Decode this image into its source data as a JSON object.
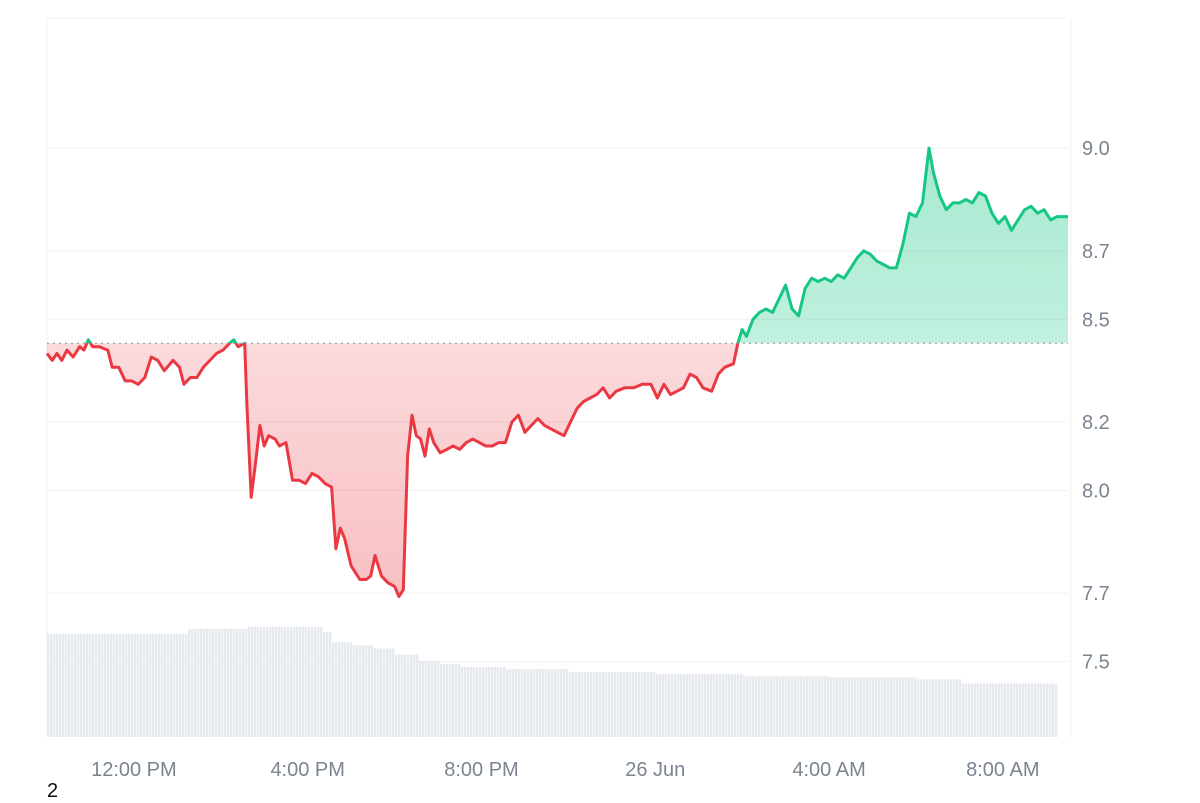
{
  "footer_text": "2",
  "colors": {
    "up": "#16c784",
    "down": "#ea3943",
    "grid": "#eef0f3",
    "volume": "#e6e9ee",
    "baseline": "#9ba3ae",
    "tick_text": "#7b8491"
  },
  "chart_data": {
    "type": "area",
    "baseline": 8.43,
    "ylim": [
      7.28,
      9.38
    ],
    "y_ticks": [
      "7.5",
      "7.7",
      "8.0",
      "8.2",
      "8.5",
      "8.7",
      "9.0"
    ],
    "x_ticks": [
      {
        "label": "12:00 PM",
        "t": 2.5
      },
      {
        "label": "4:00 PM",
        "t": 6.5
      },
      {
        "label": "8:00 PM",
        "t": 10.5
      },
      {
        "label": "26 Jun",
        "t": 14.5
      },
      {
        "label": "4:00 AM",
        "t": 18.5
      },
      {
        "label": "8:00 AM",
        "t": 22.5
      }
    ],
    "xlim": [
      0.5,
      24.0
    ],
    "price_series": [
      [
        0.5,
        8.4
      ],
      [
        0.62,
        8.38
      ],
      [
        0.73,
        8.4
      ],
      [
        0.84,
        8.38
      ],
      [
        0.96,
        8.41
      ],
      [
        1.1,
        8.39
      ],
      [
        1.25,
        8.42
      ],
      [
        1.35,
        8.41
      ],
      [
        1.45,
        8.44
      ],
      [
        1.55,
        8.42
      ],
      [
        1.7,
        8.42
      ],
      [
        1.9,
        8.41
      ],
      [
        2.0,
        8.36
      ],
      [
        2.15,
        8.36
      ],
      [
        2.3,
        8.32
      ],
      [
        2.45,
        8.32
      ],
      [
        2.6,
        8.31
      ],
      [
        2.75,
        8.33
      ],
      [
        2.9,
        8.39
      ],
      [
        3.05,
        8.38
      ],
      [
        3.2,
        8.35
      ],
      [
        3.4,
        8.38
      ],
      [
        3.55,
        8.36
      ],
      [
        3.65,
        8.31
      ],
      [
        3.8,
        8.33
      ],
      [
        3.95,
        8.33
      ],
      [
        4.1,
        8.36
      ],
      [
        4.25,
        8.38
      ],
      [
        4.4,
        8.4
      ],
      [
        4.55,
        8.41
      ],
      [
        4.7,
        8.43
      ],
      [
        4.8,
        8.44
      ],
      [
        4.9,
        8.42
      ],
      [
        5.05,
        8.43
      ],
      [
        5.1,
        8.25
      ],
      [
        5.2,
        7.98
      ],
      [
        5.3,
        8.08
      ],
      [
        5.4,
        8.19
      ],
      [
        5.5,
        8.13
      ],
      [
        5.6,
        8.16
      ],
      [
        5.75,
        8.15
      ],
      [
        5.85,
        8.13
      ],
      [
        6.0,
        8.14
      ],
      [
        6.15,
        8.03
      ],
      [
        6.3,
        8.03
      ],
      [
        6.45,
        8.02
      ],
      [
        6.6,
        8.05
      ],
      [
        6.75,
        8.04
      ],
      [
        6.9,
        8.02
      ],
      [
        7.05,
        8.01
      ],
      [
        7.15,
        7.83
      ],
      [
        7.25,
        7.89
      ],
      [
        7.35,
        7.86
      ],
      [
        7.5,
        7.78
      ],
      [
        7.7,
        7.74
      ],
      [
        7.85,
        7.74
      ],
      [
        7.95,
        7.75
      ],
      [
        8.05,
        7.81
      ],
      [
        8.2,
        7.75
      ],
      [
        8.35,
        7.73
      ],
      [
        8.5,
        7.72
      ],
      [
        8.6,
        7.69
      ],
      [
        8.7,
        7.71
      ],
      [
        8.8,
        8.1
      ],
      [
        8.9,
        8.22
      ],
      [
        9.0,
        8.16
      ],
      [
        9.1,
        8.15
      ],
      [
        9.2,
        8.1
      ],
      [
        9.3,
        8.18
      ],
      [
        9.4,
        8.14
      ],
      [
        9.55,
        8.11
      ],
      [
        9.7,
        8.12
      ],
      [
        9.85,
        8.13
      ],
      [
        10.0,
        8.12
      ],
      [
        10.15,
        8.14
      ],
      [
        10.3,
        8.15
      ],
      [
        10.45,
        8.14
      ],
      [
        10.6,
        8.13
      ],
      [
        10.75,
        8.13
      ],
      [
        10.9,
        8.14
      ],
      [
        11.05,
        8.14
      ],
      [
        11.2,
        8.2
      ],
      [
        11.35,
        8.22
      ],
      [
        11.5,
        8.17
      ],
      [
        11.65,
        8.19
      ],
      [
        11.8,
        8.21
      ],
      [
        11.95,
        8.19
      ],
      [
        12.1,
        8.18
      ],
      [
        12.25,
        8.17
      ],
      [
        12.4,
        8.16
      ],
      [
        12.55,
        8.2
      ],
      [
        12.7,
        8.24
      ],
      [
        12.85,
        8.26
      ],
      [
        13.0,
        8.27
      ],
      [
        13.15,
        8.28
      ],
      [
        13.3,
        8.3
      ],
      [
        13.45,
        8.27
      ],
      [
        13.6,
        8.29
      ],
      [
        13.8,
        8.3
      ],
      [
        14.0,
        8.3
      ],
      [
        14.2,
        8.31
      ],
      [
        14.4,
        8.31
      ],
      [
        14.55,
        8.27
      ],
      [
        14.7,
        8.31
      ],
      [
        14.85,
        8.28
      ],
      [
        15.0,
        8.29
      ],
      [
        15.15,
        8.3
      ],
      [
        15.3,
        8.34
      ],
      [
        15.45,
        8.33
      ],
      [
        15.6,
        8.3
      ],
      [
        15.8,
        8.29
      ],
      [
        15.95,
        8.34
      ],
      [
        16.1,
        8.36
      ],
      [
        16.3,
        8.37
      ],
      [
        16.4,
        8.43
      ],
      [
        16.5,
        8.47
      ],
      [
        16.6,
        8.45
      ],
      [
        16.75,
        8.5
      ],
      [
        16.9,
        8.52
      ],
      [
        17.05,
        8.53
      ],
      [
        17.2,
        8.52
      ],
      [
        17.35,
        8.56
      ],
      [
        17.5,
        8.6
      ],
      [
        17.65,
        8.53
      ],
      [
        17.8,
        8.51
      ],
      [
        17.95,
        8.59
      ],
      [
        18.1,
        8.62
      ],
      [
        18.25,
        8.61
      ],
      [
        18.4,
        8.62
      ],
      [
        18.55,
        8.61
      ],
      [
        18.7,
        8.63
      ],
      [
        18.85,
        8.62
      ],
      [
        19.0,
        8.65
      ],
      [
        19.15,
        8.68
      ],
      [
        19.3,
        8.7
      ],
      [
        19.45,
        8.69
      ],
      [
        19.6,
        8.67
      ],
      [
        19.75,
        8.66
      ],
      [
        19.9,
        8.65
      ],
      [
        20.05,
        8.65
      ],
      [
        20.2,
        8.72
      ],
      [
        20.35,
        8.81
      ],
      [
        20.5,
        8.8
      ],
      [
        20.65,
        8.84
      ],
      [
        20.8,
        9.0
      ],
      [
        20.9,
        8.93
      ],
      [
        21.05,
        8.86
      ],
      [
        21.2,
        8.82
      ],
      [
        21.35,
        8.84
      ],
      [
        21.5,
        8.84
      ],
      [
        21.65,
        8.85
      ],
      [
        21.8,
        8.84
      ],
      [
        21.95,
        8.87
      ],
      [
        22.1,
        8.86
      ],
      [
        22.25,
        8.81
      ],
      [
        22.4,
        8.78
      ],
      [
        22.55,
        8.8
      ],
      [
        22.7,
        8.76
      ],
      [
        22.85,
        8.79
      ],
      [
        23.0,
        8.82
      ],
      [
        23.15,
        8.83
      ],
      [
        23.3,
        8.81
      ],
      [
        23.45,
        8.82
      ],
      [
        23.6,
        8.79
      ],
      [
        23.75,
        8.8
      ],
      [
        23.9,
        8.8
      ],
      [
        24.0,
        8.8
      ]
    ],
    "volume_series": [
      [
        0.5,
        1.0
      ],
      [
        3.6,
        1.0
      ],
      [
        3.7,
        1.05
      ],
      [
        5.0,
        1.05
      ],
      [
        5.1,
        1.07
      ],
      [
        6.6,
        1.07
      ],
      [
        6.8,
        1.02
      ],
      [
        7.0,
        0.92
      ],
      [
        7.5,
        0.89
      ],
      [
        8.0,
        0.86
      ],
      [
        8.5,
        0.8
      ],
      [
        9.0,
        0.74
      ],
      [
        9.5,
        0.71
      ],
      [
        10.0,
        0.68
      ],
      [
        11.0,
        0.66
      ],
      [
        12.5,
        0.63
      ],
      [
        14.5,
        0.61
      ],
      [
        16.5,
        0.59
      ],
      [
        18.5,
        0.58
      ],
      [
        20.5,
        0.56
      ],
      [
        21.5,
        0.52
      ],
      [
        23.7,
        0.51
      ]
    ]
  }
}
